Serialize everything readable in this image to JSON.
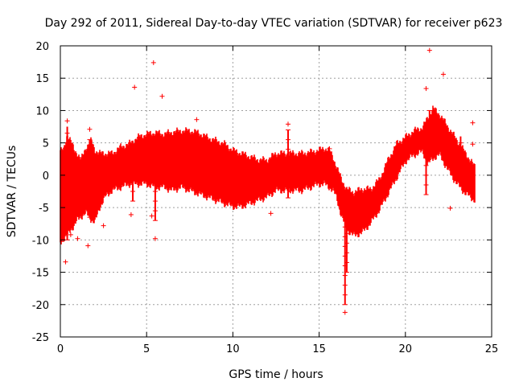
{
  "chart_data": {
    "type": "scatter",
    "title": "Day 292 of 2011, Sidereal Day-to-day VTEC variation (SDTVAR) for receiver p623",
    "xlabel": "GPS time / hours",
    "ylabel": "SDTVAR / TECUs",
    "xlim": [
      0,
      25
    ],
    "ylim": [
      -25,
      20
    ],
    "xticks": [
      "0",
      "5",
      "10",
      "15",
      "20",
      "25"
    ],
    "yticks": [
      "20",
      "15",
      "10",
      "5",
      "0",
      "-5",
      "-10",
      "-15",
      "-20",
      "-25"
    ],
    "grid": true,
    "marker": "+",
    "color": "#ff0000",
    "series": [
      {
        "name": "SDTVAR",
        "band_x": [
          0,
          0.2,
          0.4,
          0.6,
          0.8,
          1.0,
          1.2,
          1.5,
          1.8,
          2.0,
          2.3,
          2.6,
          3.0,
          3.5,
          4.0,
          4.5,
          5.0,
          5.5,
          6.0,
          6.5,
          7.0,
          7.5,
          8.0,
          8.5,
          9.0,
          9.5,
          10.0,
          10.5,
          11.0,
          11.5,
          12.0,
          12.5,
          13.0,
          13.5,
          14.0,
          14.5,
          15.0,
          15.3,
          15.6,
          15.8,
          16.0,
          16.3,
          16.6,
          17.0,
          17.5,
          18.0,
          18.5,
          19.0,
          19.5,
          20.0,
          20.5,
          21.0,
          21.3,
          21.6,
          22.0,
          22.5,
          23.0,
          23.5,
          24.0
        ],
        "band_high": [
          3.5,
          3.5,
          6.0,
          5.0,
          3.5,
          3.0,
          2.0,
          4.0,
          5.0,
          3.5,
          3.0,
          3.0,
          3.0,
          4.0,
          4.5,
          5.5,
          6.0,
          6.2,
          6.0,
          6.3,
          6.5,
          6.5,
          6.2,
          5.5,
          5.0,
          4.5,
          3.5,
          3.0,
          2.5,
          2.0,
          2.0,
          3.0,
          3.0,
          3.0,
          3.0,
          3.2,
          3.5,
          3.8,
          3.5,
          2.5,
          1.0,
          -1.0,
          -2.5,
          -3.0,
          -2.5,
          -2.5,
          -1.0,
          2.0,
          4.5,
          5.5,
          6.5,
          7.0,
          8.5,
          10.0,
          9.0,
          7.0,
          5.0,
          3.0,
          1.0
        ],
        "band_low": [
          -10.0,
          -9.5,
          -9.0,
          -8.0,
          -7.5,
          -6.5,
          -6.0,
          -5.5,
          -6.5,
          -7.0,
          -4.5,
          -3.0,
          -2.0,
          -1.5,
          -1.0,
          -1.0,
          -1.0,
          -1.5,
          -1.5,
          -2.0,
          -1.5,
          -2.0,
          -2.5,
          -3.0,
          -3.5,
          -4.0,
          -4.5,
          -4.5,
          -4.0,
          -3.5,
          -3.0,
          -2.0,
          -2.0,
          -2.0,
          -2.0,
          -1.5,
          -1.0,
          -1.0,
          -1.5,
          -2.0,
          -3.0,
          -6.0,
          -8.0,
          -9.0,
          -8.5,
          -7.0,
          -5.0,
          -2.5,
          0.0,
          2.5,
          3.5,
          4.0,
          2.0,
          3.0,
          3.5,
          1.0,
          -1.0,
          -2.5,
          -3.5
        ],
        "outliers": [
          {
            "x": 0.3,
            "y": -13.4
          },
          {
            "x": 1.6,
            "y": -10.9
          },
          {
            "x": 4.3,
            "y": 13.6
          },
          {
            "x": 5.4,
            "y": 17.4
          },
          {
            "x": 5.9,
            "y": 12.2
          },
          {
            "x": 5.5,
            "y": -9.8
          },
          {
            "x": 7.9,
            "y": 8.6
          },
          {
            "x": 1.7,
            "y": 7.1
          },
          {
            "x": 0.4,
            "y": 8.4
          },
          {
            "x": 13.2,
            "y": 7.9
          },
          {
            "x": 16.5,
            "y": -21.2
          },
          {
            "x": 21.4,
            "y": 19.3
          },
          {
            "x": 21.2,
            "y": 13.4
          },
          {
            "x": 22.2,
            "y": 15.6
          },
          {
            "x": 22.6,
            "y": -5.1
          },
          {
            "x": 0.6,
            "y": -9.2
          },
          {
            "x": 1.0,
            "y": -9.8
          },
          {
            "x": 2.5,
            "y": -7.8
          },
          {
            "x": 4.1,
            "y": -6.1
          },
          {
            "x": 5.3,
            "y": -6.3
          },
          {
            "x": 12.2,
            "y": -5.9
          },
          {
            "x": 15.6,
            "y": 4.1
          },
          {
            "x": 23.9,
            "y": 8.1
          },
          {
            "x": 23.9,
            "y": 4.8
          }
        ],
        "spikes": [
          {
            "x": 0.4,
            "y1": -10.0,
            "y2": 7.5
          },
          {
            "x": 1.7,
            "y1": -6.5,
            "y2": 5.5
          },
          {
            "x": 4.2,
            "y1": -4.0,
            "y2": 3.0
          },
          {
            "x": 5.5,
            "y1": -7.0,
            "y2": 3.0
          },
          {
            "x": 13.2,
            "y1": -3.5,
            "y2": 7.0
          },
          {
            "x": 16.5,
            "y1": -20.0,
            "y2": -3.0
          },
          {
            "x": 16.6,
            "y1": -15.0,
            "y2": -4.0
          },
          {
            "x": 21.2,
            "y1": -3.0,
            "y2": 6.0
          },
          {
            "x": 21.4,
            "y1": 4.0,
            "y2": 10.0
          },
          {
            "x": 23.2,
            "y1": -1.0,
            "y2": 6.0
          }
        ]
      }
    ]
  }
}
